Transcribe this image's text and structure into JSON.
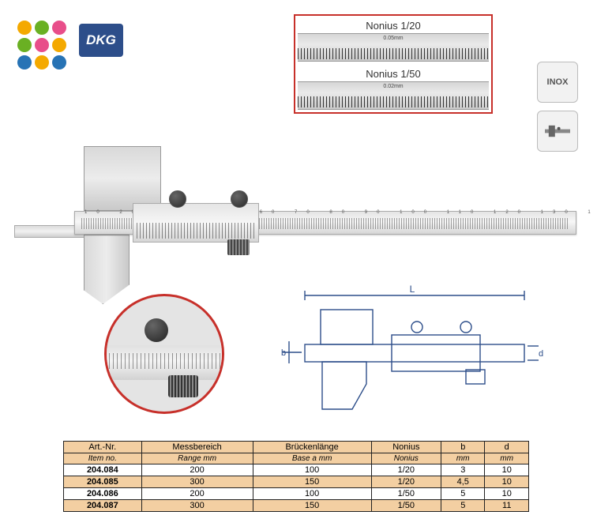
{
  "logo_dots_colors": [
    "#f4a900",
    "#6ab023",
    "#e84e8a",
    "#6ab023",
    "#e84e8a",
    "#f4a900",
    "#2773b5",
    "#f4a900",
    "#2773b5"
  ],
  "dkg": "DKG",
  "badges": {
    "inox": "INOX"
  },
  "nonius": {
    "title20": "Nonius 1/20",
    "title50": "Nonius 1/50",
    "fine20": "0.05mm",
    "fine50": "0.02mm",
    "border_color": "#c7302a"
  },
  "diagram": {
    "L": "L",
    "b": "b",
    "d": "d"
  },
  "table": {
    "head1": [
      "Art.-Nr.",
      "Messbereich",
      "Brückenlänge",
      "Nonius",
      "b",
      "d"
    ],
    "head2": [
      "Item no.",
      "Range mm",
      "Base a mm",
      "Nonius",
      "mm",
      "mm"
    ],
    "rows": [
      [
        "204.084",
        "200",
        "100",
        "1/20",
        "3",
        "10"
      ],
      [
        "204.085",
        "300",
        "150",
        "1/20",
        "4,5",
        "10"
      ],
      [
        "204.086",
        "200",
        "100",
        "1/50",
        "5",
        "10"
      ],
      [
        "204.087",
        "300",
        "150",
        "1/50",
        "5",
        "11"
      ]
    ],
    "header_bg": "#f3cfa2"
  }
}
